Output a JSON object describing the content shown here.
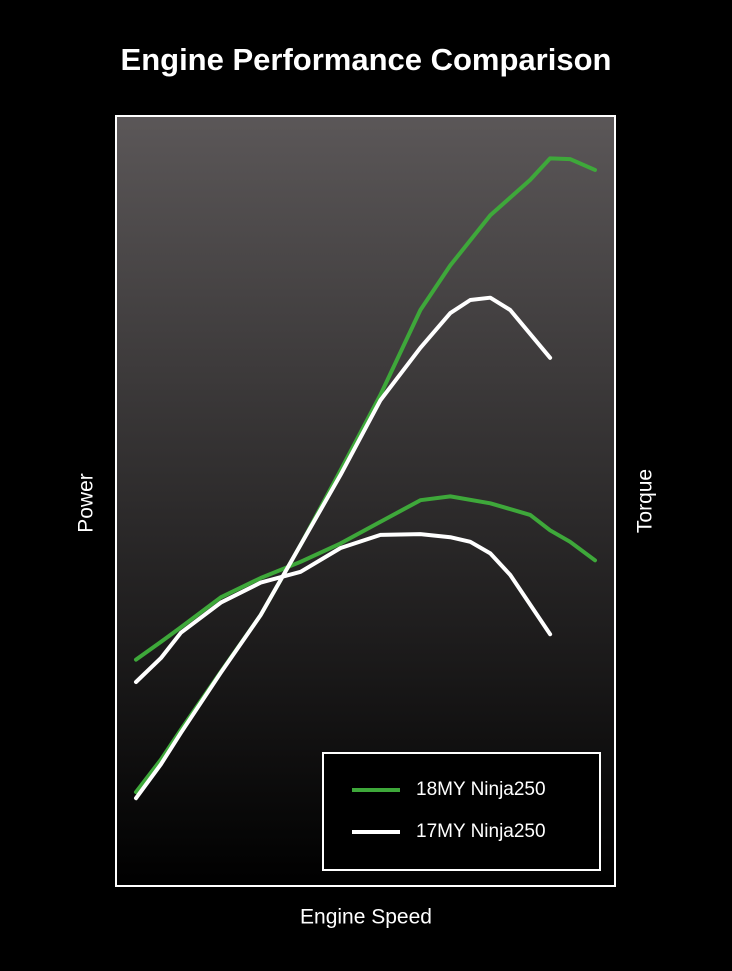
{
  "chart_data": {
    "type": "line",
    "title": "Engine Performance Comparison",
    "x_label": "Engine Speed",
    "y_label": "Power",
    "y2_label": "Torque",
    "xlim": [
      0,
      100
    ],
    "ylim": [
      0,
      100
    ],
    "legend": "lower right",
    "series": [
      {
        "name": "18MY Ninja250",
        "color": "#3ea83a",
        "x": [
          4,
          9,
          13,
          21,
          29,
          37,
          45,
          53,
          61,
          67,
          75,
          83,
          87,
          91,
          96
        ],
        "power": [
          12.2,
          16.4,
          20.3,
          27.8,
          35.2,
          44.3,
          54.0,
          63.8,
          74.8,
          80.6,
          87.1,
          91.7,
          94.5,
          94.4,
          93.0
        ],
        "torque": [
          29.4,
          31.7,
          33.6,
          37.5,
          40.0,
          42.1,
          44.5,
          47.3,
          50.1,
          50.6,
          49.7,
          48.2,
          46.2,
          44.7,
          42.3
        ]
      },
      {
        "name": "17MY Ninja250",
        "color": "#ffffff",
        "x": [
          4,
          9,
          13,
          21,
          29,
          37,
          45,
          53,
          61,
          67,
          71,
          75,
          79,
          87
        ],
        "power": [
          11.4,
          15.8,
          19.9,
          27.7,
          35.2,
          44.3,
          53.4,
          63.1,
          69.9,
          74.4,
          76.1,
          76.4,
          74.8,
          68.6
        ],
        "torque": [
          26.5,
          29.6,
          32.9,
          36.8,
          39.4,
          40.8,
          43.9,
          45.6,
          45.7,
          45.3,
          44.7,
          43.2,
          40.4,
          32.7
        ]
      }
    ]
  }
}
